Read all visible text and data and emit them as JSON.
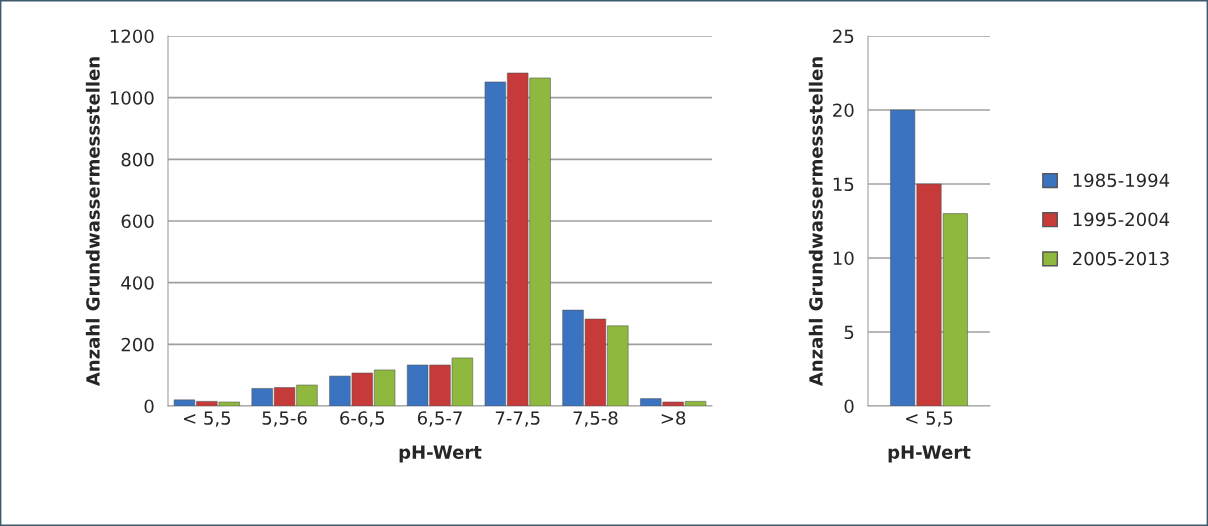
{
  "chart_data": [
    {
      "type": "bar",
      "xlabel": "pH-Wert",
      "ylabel": "Anzahl Grundwassermessstellen",
      "categories": [
        "< 5,5",
        "5,5-6",
        "6-6,5",
        "6,5-7",
        "7-7,5",
        "7,5-8",
        ">8"
      ],
      "ylim": [
        0,
        1200
      ],
      "yticks": [
        0,
        200,
        400,
        600,
        800,
        1000,
        1200
      ],
      "grid": "y",
      "legend": false,
      "series": [
        {
          "color": "#3a74c0",
          "values": [
            20,
            57,
            97,
            133,
            1051,
            311,
            24
          ]
        },
        {
          "color": "#c63a3a",
          "values": [
            15,
            60,
            107,
            133,
            1080,
            282,
            13
          ]
        },
        {
          "color": "#8fb83e",
          "values": [
            13,
            68,
            117,
            156,
            1064,
            260,
            15
          ]
        }
      ]
    },
    {
      "type": "bar",
      "xlabel": "pH-Wert",
      "ylabel": "Anzahl Grundwassermessstellen",
      "categories": [
        "< 5,5"
      ],
      "ylim": [
        0,
        25
      ],
      "yticks": [
        0,
        5,
        10,
        15,
        20,
        25
      ],
      "grid": "y",
      "legend": "right",
      "series": [
        {
          "name": "1985-1994",
          "color": "#3a74c0",
          "values": [
            20
          ]
        },
        {
          "name": "1995-2004",
          "color": "#c63a3a",
          "values": [
            15
          ]
        },
        {
          "name": "2005-2013",
          "color": "#8fb83e",
          "values": [
            13
          ]
        }
      ]
    }
  ]
}
